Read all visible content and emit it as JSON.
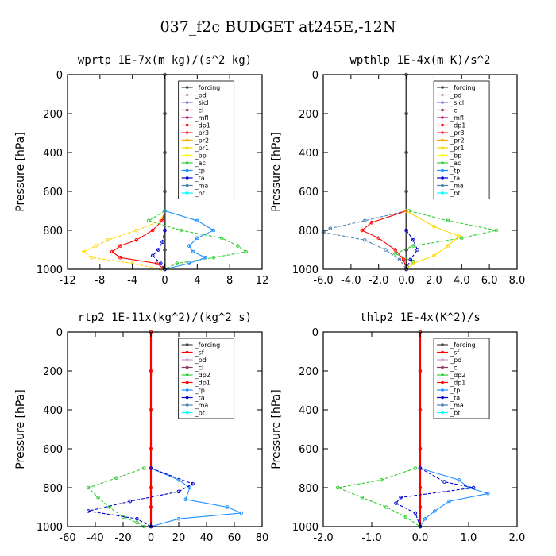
{
  "figure_title": "037_f2c  BUDGET at245E,-12N",
  "colors": {
    "forcing": "#444444",
    "pd": "#c8a2c8",
    "sicl": "#9370db",
    "cl": "#8b3a62",
    "mfl": "#c71585",
    "dp1": "#ff0000",
    "pr3": "#ff3030",
    "pr2": "#ffa500",
    "pr1": "#ffd700",
    "bp": "#ffff00",
    "ac": "#32cd32",
    "tp": "#1e90ff",
    "ta": "#0000cd",
    "ma": "#4682b4",
    "bt": "#00ffff",
    "sf": "#ff0000",
    "dp2": "#32cd32"
  },
  "chart_data": [
    {
      "type": "line",
      "title": "wprtp  1E-7x(m kg)/(s^2 kg)",
      "ylabel": "Pressure [hPa]",
      "xlim": [
        -12,
        12
      ],
      "ylim": [
        1000,
        0
      ],
      "xticks": [
        "-12",
        "-8",
        "-4",
        "0",
        "4",
        "8",
        "12"
      ],
      "yticks": [
        "0",
        "200",
        "400",
        "600",
        "800",
        "1000"
      ],
      "legend": [
        "_forcing",
        "_pd",
        "_sicl",
        "_cl",
        "_mfl",
        "_dp1",
        "_pr3",
        "_pr2",
        "_pr1",
        "_bp",
        "_ac",
        "_tp",
        "_ta",
        "_ma",
        "_bt"
      ],
      "series": [
        {
          "name": "_forcing",
          "color": "#444444",
          "y": [
            0,
            200,
            400,
            600,
            700,
            800,
            900,
            1000
          ],
          "x": [
            0,
            0,
            0,
            0,
            0,
            0,
            0,
            0
          ]
        },
        {
          "name": "_pr1",
          "color": "#ffd700",
          "y": [
            700,
            750,
            800,
            850,
            880,
            910,
            940,
            970,
            1000
          ],
          "x": [
            0,
            -0.5,
            -3.5,
            -7,
            -8.5,
            -10,
            -9,
            -4,
            -0.5
          ]
        },
        {
          "name": "_dp1",
          "color": "#ff0000",
          "y": [
            700,
            750,
            800,
            850,
            880,
            910,
            940,
            970,
            1000
          ],
          "x": [
            0,
            -0.3,
            -1.5,
            -3.5,
            -5.5,
            -6.5,
            -5.5,
            -1,
            0
          ]
        },
        {
          "name": "_ac",
          "color": "#32cd32",
          "y": [
            700,
            750,
            800,
            840,
            880,
            910,
            940,
            970,
            1000
          ],
          "x": [
            0,
            -2,
            2,
            7,
            9,
            10,
            6,
            1.5,
            0
          ]
        },
        {
          "name": "_tp",
          "color": "#1e90ff",
          "y": [
            700,
            750,
            800,
            840,
            880,
            910,
            940,
            970,
            1000
          ],
          "x": [
            0,
            4,
            6,
            4,
            3,
            3.5,
            5,
            3,
            0
          ]
        },
        {
          "name": "_ta",
          "color": "#0000cd",
          "y": [
            800,
            860,
            900,
            930,
            970,
            1000
          ],
          "x": [
            0,
            -0.3,
            -0.8,
            -1.5,
            -0.5,
            0
          ]
        }
      ]
    },
    {
      "type": "line",
      "title": "wpthlp  1E-4x(m K)/s^2",
      "ylabel": "Pressure [hPa]",
      "xlim": [
        -6,
        8
      ],
      "ylim": [
        1000,
        0
      ],
      "xticks": [
        "-6.0",
        "-4.0",
        "-2.0",
        "0.0",
        "2.0",
        "4.0",
        "6.0",
        "8.0"
      ],
      "yticks": [
        "0",
        "200",
        "400",
        "600",
        "800",
        "1000"
      ],
      "legend": [
        "_forcing",
        "_pd",
        "_sicl",
        "_cl",
        "_mfl",
        "_dp1",
        "_pr3",
        "_pr2",
        "_pr1",
        "_bp",
        "_ac",
        "_tp",
        "_ta",
        "_ma",
        "_bt"
      ],
      "series": [
        {
          "name": "_forcing",
          "color": "#444444",
          "y": [
            0,
            200,
            400,
            600,
            700,
            800,
            900,
            1000
          ],
          "x": [
            0,
            0,
            0,
            0,
            0,
            0,
            0,
            0
          ]
        },
        {
          "name": "_ma",
          "color": "#4682b4",
          "y": [
            700,
            750,
            790,
            810,
            850,
            900,
            950,
            1000
          ],
          "x": [
            0,
            -3,
            -5.5,
            -6,
            -3,
            -1.5,
            -0.5,
            0
          ]
        },
        {
          "name": "_dp1",
          "color": "#ff0000",
          "y": [
            700,
            760,
            800,
            840,
            900,
            950,
            1000
          ],
          "x": [
            0,
            -2.5,
            -3.2,
            -2,
            -0.8,
            -0.2,
            0
          ]
        },
        {
          "name": "_ac",
          "color": "#32cd32",
          "y": [
            700,
            750,
            800,
            840,
            880,
            920,
            960,
            1000
          ],
          "x": [
            0.2,
            3,
            6.5,
            4,
            0.5,
            -0.8,
            0.5,
            0
          ]
        },
        {
          "name": "_pr1",
          "color": "#ffd700",
          "y": [
            700,
            780,
            830,
            880,
            930,
            970,
            1000
          ],
          "x": [
            0,
            2,
            3.8,
            3,
            2,
            0.5,
            0
          ]
        },
        {
          "name": "_ta",
          "color": "#0000cd",
          "y": [
            800,
            850,
            900,
            950,
            1000
          ],
          "x": [
            0,
            0.5,
            0.8,
            0.3,
            0
          ]
        }
      ]
    },
    {
      "type": "line",
      "title": "rtp2  1E-11x(kg^2)/(kg^2 s)",
      "ylabel": "Pressure [hPa]",
      "xlim": [
        -60,
        80
      ],
      "ylim": [
        1000,
        0
      ],
      "xticks": [
        "-60",
        "-40",
        "-20",
        "0",
        "20",
        "40",
        "60",
        "80"
      ],
      "yticks": [
        "0",
        "200",
        "400",
        "600",
        "800",
        "1000"
      ],
      "legend": [
        "_forcing",
        "_sf",
        "_pd",
        "_cl",
        "_dp2",
        "_dp1",
        "_tp",
        "_ta",
        "_ma",
        "_bt"
      ],
      "series": [
        {
          "name": "_forcing",
          "color": "#ff0000",
          "y": [
            0,
            200,
            400,
            600,
            700,
            800,
            900,
            1000
          ],
          "x": [
            0,
            0,
            0,
            0,
            0,
            0,
            0,
            0
          ]
        },
        {
          "name": "_dp2",
          "color": "#32cd32",
          "y": [
            700,
            750,
            800,
            850,
            900,
            950,
            980,
            1000
          ],
          "x": [
            -5,
            -25,
            -45,
            -38,
            -30,
            -20,
            -10,
            -5
          ]
        },
        {
          "name": "_tp",
          "color": "#1e90ff",
          "y": [
            700,
            760,
            800,
            860,
            900,
            930,
            960,
            1000
          ],
          "x": [
            0,
            20,
            28,
            25,
            55,
            65,
            20,
            0
          ]
        },
        {
          "name": "_ta",
          "color": "#0000cd",
          "y": [
            700,
            780,
            820,
            870,
            920,
            960,
            1000
          ],
          "x": [
            0,
            30,
            20,
            -15,
            -45,
            -10,
            0
          ]
        }
      ]
    },
    {
      "type": "line",
      "title": "thlp2  1E-4x(K^2)/s",
      "ylabel": "Pressure [hPa]",
      "xlim": [
        -2,
        2
      ],
      "ylim": [
        1000,
        0
      ],
      "xticks": [
        "-2.0",
        "-1.0",
        "0.0",
        "1.0",
        "2.0"
      ],
      "yticks": [
        "0",
        "200",
        "400",
        "600",
        "800",
        "1000"
      ],
      "legend": [
        "_forcing",
        "_sf",
        "_pd",
        "_cl",
        "_dp2",
        "_dp1",
        "_tp",
        "_ta",
        "_ma",
        "_bt"
      ],
      "series": [
        {
          "name": "_forcing",
          "color": "#ff0000",
          "y": [
            0,
            200,
            400,
            600,
            700,
            800,
            900,
            1000
          ],
          "x": [
            0,
            0,
            0,
            0,
            0,
            0,
            0,
            0
          ]
        },
        {
          "name": "_dp2",
          "color": "#32cd32",
          "y": [
            700,
            760,
            800,
            850,
            900,
            950,
            1000
          ],
          "x": [
            -0.1,
            -0.8,
            -1.7,
            -1.2,
            -0.7,
            -0.3,
            0
          ]
        },
        {
          "name": "_tp",
          "color": "#1e90ff",
          "y": [
            700,
            760,
            800,
            830,
            870,
            920,
            960,
            1000
          ],
          "x": [
            0,
            0.8,
            1.0,
            1.4,
            0.6,
            0.3,
            0.1,
            0
          ]
        },
        {
          "name": "_ta",
          "color": "#0000cd",
          "y": [
            700,
            770,
            800,
            850,
            880,
            930,
            1000
          ],
          "x": [
            0,
            0.5,
            1.1,
            -0.4,
            -0.5,
            -0.1,
            0
          ]
        }
      ]
    }
  ]
}
